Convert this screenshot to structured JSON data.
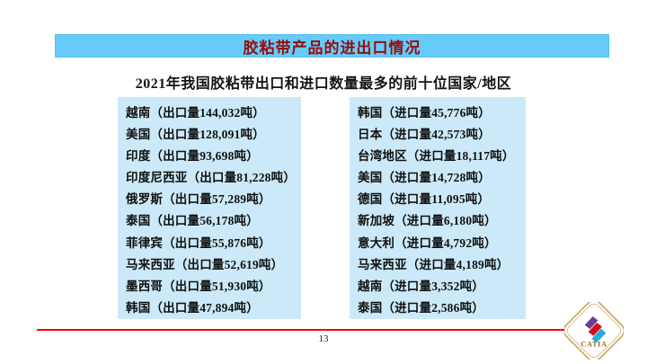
{
  "slide": {
    "title": "胶粘带产品的进出口情况",
    "subtitle": "2021年我国胶粘带出口和进口数量最多的前十位国家/地区",
    "page_number": "13"
  },
  "export_list": {
    "items": [
      "越南（出口量144,032吨）",
      "美国（出口量128,091吨）",
      "印度（出口量93,698吨）",
      "印度尼西亚（出口量81,228吨）",
      "俄罗斯（出口量57,289吨）",
      "泰国（出口量56,178吨）",
      "菲律宾（出口量55,876吨）",
      "马来西亚（出口量52,619吨）",
      "墨西哥（出口量51,930吨）",
      "韩国（出口量47,894吨）"
    ]
  },
  "import_list": {
    "items": [
      "韩国（进口量45,776吨）",
      "日本（进口量42,573吨）",
      "台湾地区（进口量18,117吨）",
      "美国（进口量14,728吨）",
      "德国（进口量11,095吨）",
      "新加坡（进口量6,180吨）",
      "意大利（进口量4,792吨）",
      "马来西亚（进口量4,189吨）",
      "越南（进口量3,352吨）",
      "泰国（进口量2,586吨）"
    ]
  },
  "logo": {
    "text": "CATIA"
  },
  "colors": {
    "title_bar_bg": "#66cbf8",
    "title_text": "#950d0d",
    "list_box_bg": "#cbe9f8",
    "footer_line": "#f80000",
    "logo_outline": "#c9a45c",
    "logo_purple": "#6b3f94",
    "logo_red": "#d01020",
    "logo_cyan": "#2ba9e0",
    "logo_text": "#9c6a1c"
  }
}
